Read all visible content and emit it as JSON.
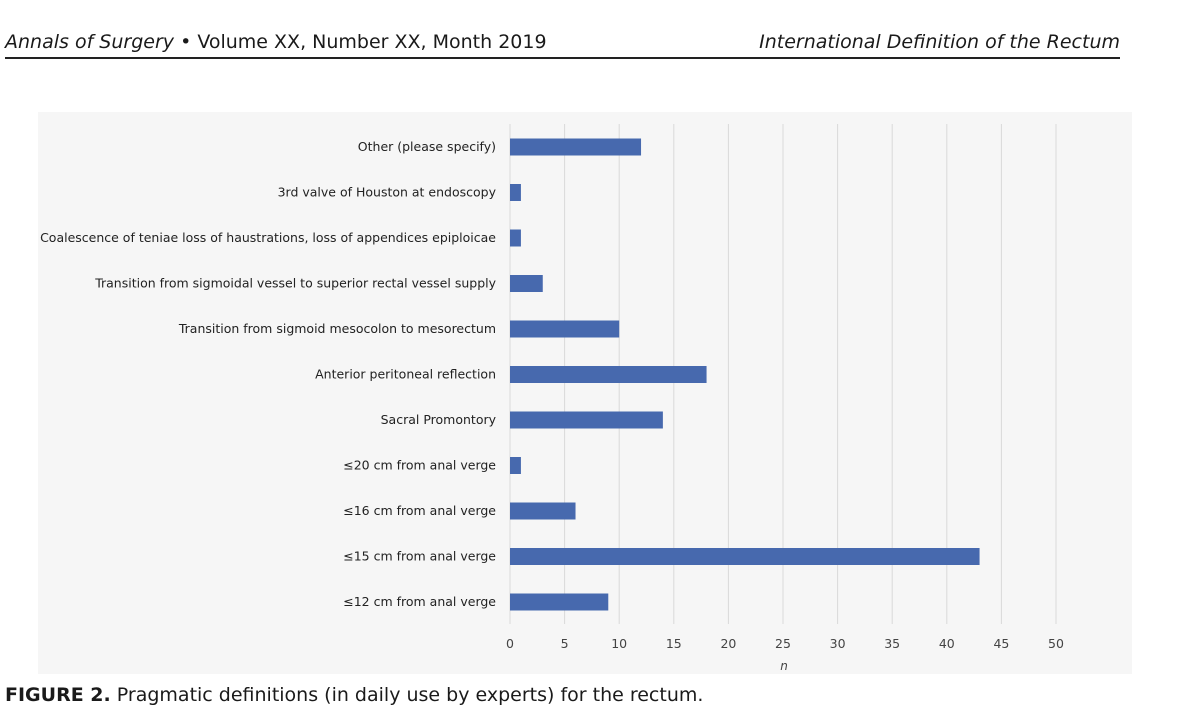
{
  "header": {
    "journal": "Annals of Surgery",
    "bullet": "•",
    "issue": "Volume XX, Number XX, Month 2019",
    "running_title": "International Definition of the Rectum"
  },
  "caption": {
    "label": "FIGURE 2.",
    "text": "Pragmatic definitions (in daily use by experts) for the rectum."
  },
  "colors": {
    "bar": "#4769AE",
    "grid": "#d9d9d9",
    "panel": "#f6f6f6"
  },
  "chart_data": {
    "type": "bar",
    "orientation": "horizontal",
    "title": "",
    "xlabel": "n",
    "ylabel": "",
    "xlim": [
      0,
      50
    ],
    "xticks": [
      0,
      5,
      10,
      15,
      20,
      25,
      30,
      35,
      40,
      45,
      50
    ],
    "grid": true,
    "categories": [
      "Other (please specify)",
      "3rd valve of Houston at endoscopy",
      "Coalescence of teniae loss of haustrations, loss of appendices epiploicae",
      "Transition from sigmoidal vessel to superior rectal vessel supply",
      "Transition from sigmoid mesocolon to mesorectum",
      "Anterior peritoneal reflection",
      "Sacral Promontory",
      "≤20 cm from anal verge",
      "≤16 cm from anal verge",
      "≤15 cm from anal verge",
      "≤12 cm from anal verge"
    ],
    "values": [
      12,
      1,
      1,
      3,
      10,
      18,
      14,
      1,
      6,
      43,
      9
    ]
  }
}
